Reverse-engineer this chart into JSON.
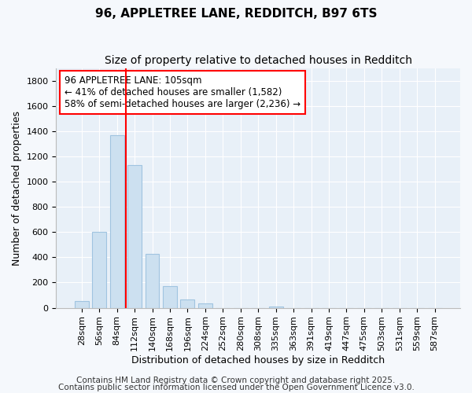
{
  "title": "96, APPLETREE LANE, REDDITCH, B97 6TS",
  "subtitle": "Size of property relative to detached houses in Redditch",
  "xlabel": "Distribution of detached houses by size in Redditch",
  "ylabel": "Number of detached properties",
  "bar_color": "#cce0f0",
  "bar_edgecolor": "#a0c4e0",
  "plot_bg_color": "#e8f0f8",
  "fig_bg_color": "#f5f8fc",
  "grid_color": "#ffffff",
  "categories": [
    "28sqm",
    "56sqm",
    "84sqm",
    "112sqm",
    "140sqm",
    "168sqm",
    "196sqm",
    "224sqm",
    "252sqm",
    "280sqm",
    "308sqm",
    "335sqm",
    "363sqm",
    "391sqm",
    "419sqm",
    "447sqm",
    "475sqm",
    "503sqm",
    "531sqm",
    "559sqm",
    "587sqm"
  ],
  "values": [
    55,
    600,
    1370,
    1130,
    430,
    175,
    65,
    35,
    0,
    0,
    0,
    10,
    0,
    0,
    0,
    0,
    0,
    0,
    0,
    0,
    0
  ],
  "ylim": [
    0,
    1900
  ],
  "yticks": [
    0,
    200,
    400,
    600,
    800,
    1000,
    1200,
    1400,
    1600,
    1800
  ],
  "property_label": "96 APPLETREE LANE: 105sqm",
  "annotation_line1": "← 41% of detached houses are smaller (1,582)",
  "annotation_line2": "58% of semi-detached houses are larger (2,236) →",
  "red_line_x": 2.5,
  "footer1": "Contains HM Land Registry data © Crown copyright and database right 2025.",
  "footer2": "Contains public sector information licensed under the Open Government Licence v3.0.",
  "title_fontsize": 11,
  "subtitle_fontsize": 10,
  "label_fontsize": 9,
  "tick_fontsize": 8,
  "annotation_fontsize": 8.5,
  "footer_fontsize": 7.5
}
